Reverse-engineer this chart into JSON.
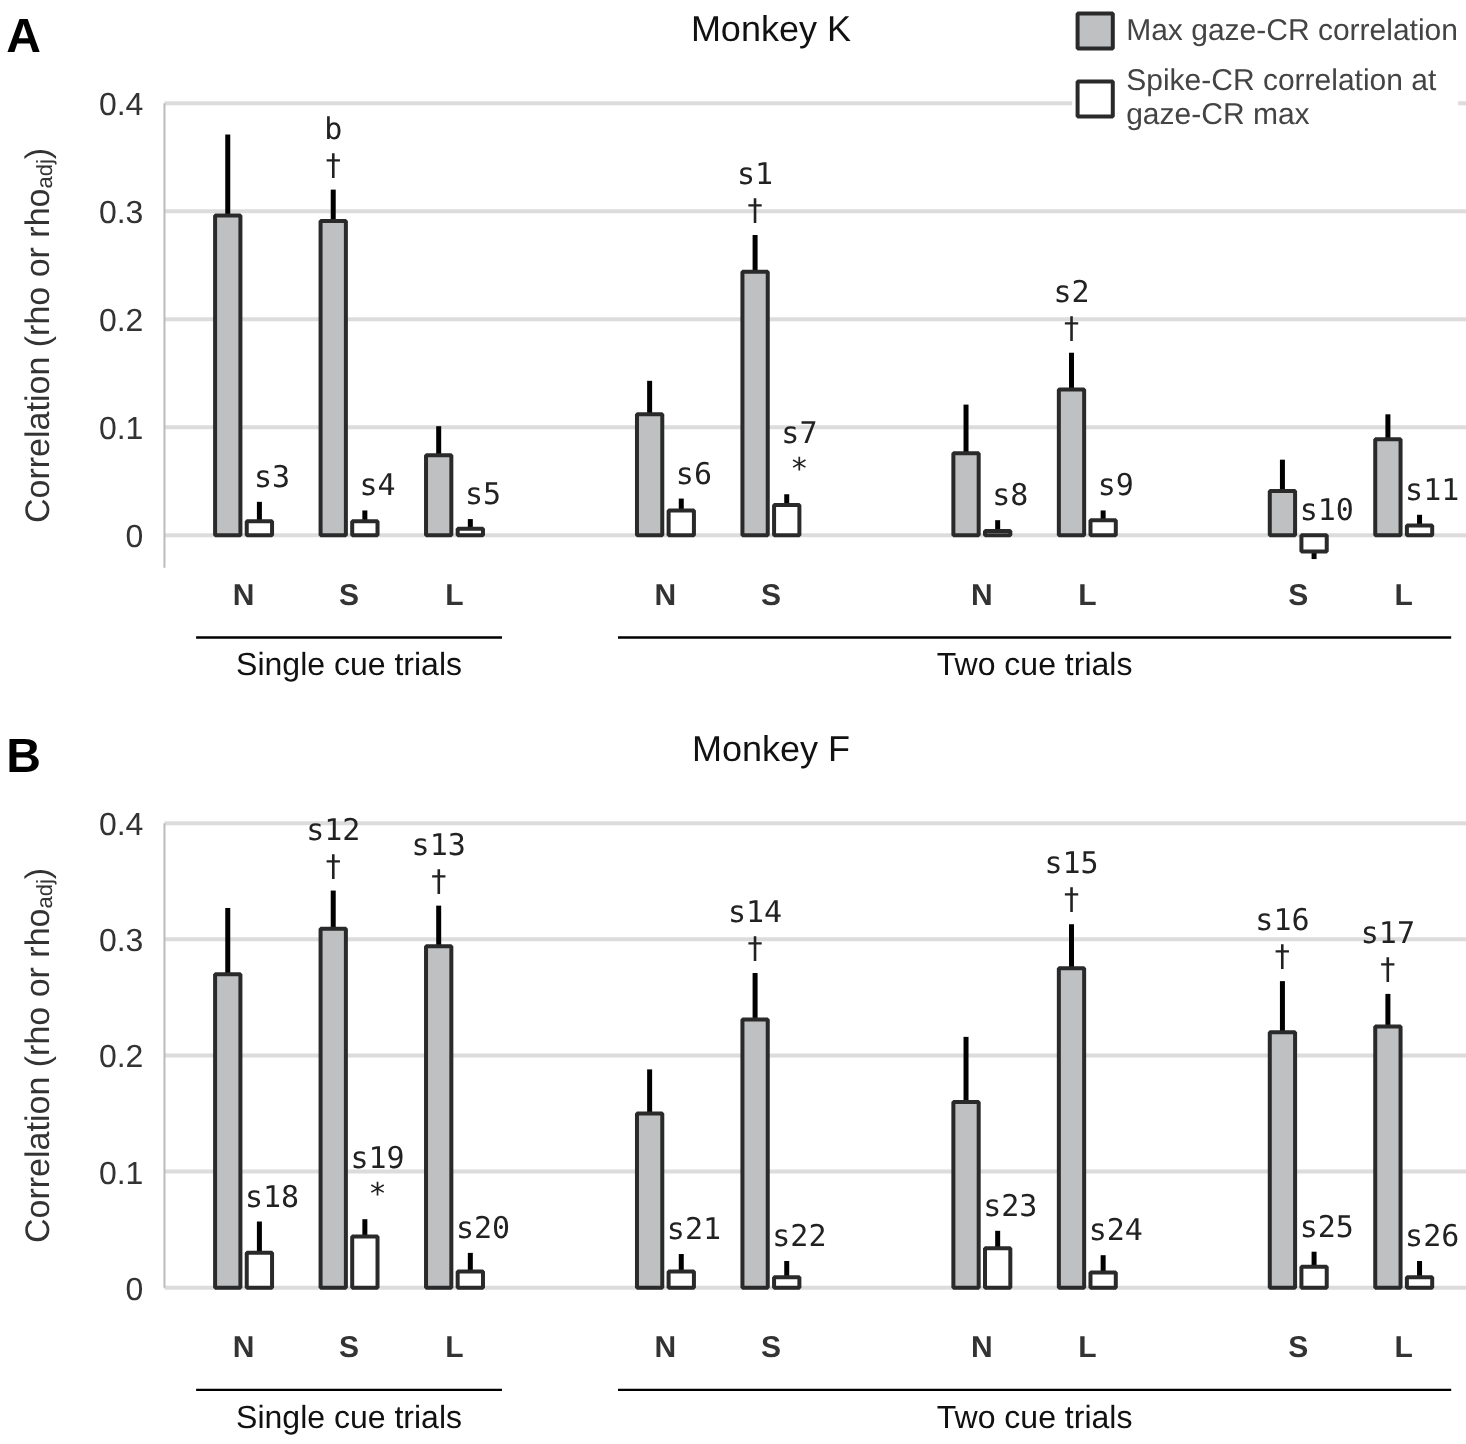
{
  "chart_data": [
    {
      "type": "bar",
      "title": "Monkey K",
      "ylabel": "Correlation (rho or rho$_{adj}$)",
      "annotations": [
        "A",
        "Single cue trials",
        "Two cue trials"
      ],
      "categories": [
        "N",
        "S",
        "L",
        null,
        "N",
        "S",
        null,
        "N",
        "L",
        null,
        "S",
        "L"
      ],
      "ylim": [
        -0.03,
        0.4
      ],
      "yticks": [
        0,
        0.1,
        0.2,
        0.3,
        0.4
      ],
      "grid": "y",
      "legend": "top right",
      "series": [
        {
          "name": "Max gaze-CR correlation",
          "color": "#bfc0c2",
          "values": [
            0.296,
            0.291,
            0.074,
            null,
            0.112,
            0.244,
            null,
            0.076,
            0.135,
            null,
            0.041,
            0.089
          ],
          "errors": [
            [
              0.296,
              0.371
            ],
            [
              0.291,
              0.32
            ],
            [
              0.074,
              0.101
            ],
            null,
            [
              0.112,
              0.143
            ],
            [
              0.244,
              0.278
            ],
            null,
            [
              0.076,
              0.121
            ],
            [
              0.135,
              0.169
            ],
            null,
            [
              0.041,
              0.07
            ],
            [
              0.089,
              0.112
            ]
          ],
          "value_labels": [
            null,
            "b\n†",
            null,
            null,
            null,
            "s1\n†",
            null,
            null,
            "s2\n†",
            null,
            null,
            null
          ]
        },
        {
          "name": "Spike-CR correlation at gaze-CR max",
          "color": "#ffffff",
          "values": [
            0.013,
            0.013,
            0.006,
            null,
            0.023,
            0.028,
            null,
            0.004,
            0.014,
            null,
            -0.015,
            0.009
          ],
          "errors": [
            [
              0.013,
              0.031
            ],
            [
              0.013,
              0.023
            ],
            [
              0.006,
              0.015
            ],
            null,
            [
              0.023,
              0.034
            ],
            [
              0.028,
              0.038
            ],
            null,
            [
              0.004,
              0.014
            ],
            [
              0.014,
              0.023
            ],
            null,
            [
              -0.022,
              -0.015
            ],
            [
              0.009,
              0.019
            ]
          ],
          "value_labels": [
            "s3",
            "s4",
            "s5",
            null,
            "s6",
            "s7\n*",
            null,
            "s8",
            "s9",
            null,
            "s10",
            "s11"
          ]
        }
      ]
    },
    {
      "type": "bar",
      "title": "Monkey F",
      "ylabel": "Correlation (rho or rho$_{adj}$)",
      "annotations": [
        "B",
        "Single cue trials",
        "Two cue trials"
      ],
      "categories": [
        "N",
        "S",
        "L",
        null,
        "N",
        "S",
        null,
        "N",
        "L",
        null,
        "S",
        "L"
      ],
      "ylim": [
        0,
        0.4
      ],
      "yticks": [
        0,
        0.1,
        0.2,
        0.3,
        0.4
      ],
      "grid": "y",
      "series": [
        {
          "color": "#bfc0c2",
          "values": [
            0.27,
            0.309,
            0.294,
            null,
            0.15,
            0.231,
            null,
            0.16,
            0.275,
            null,
            0.22,
            0.225
          ],
          "errors": [
            [
              0.27,
              0.327
            ],
            [
              0.309,
              0.342
            ],
            [
              0.294,
              0.329
            ],
            null,
            [
              0.15,
              0.188
            ],
            [
              0.231,
              0.271
            ],
            null,
            [
              0.16,
              0.216
            ],
            [
              0.275,
              0.313
            ],
            null,
            [
              0.22,
              0.264
            ],
            [
              0.225,
              0.253
            ]
          ],
          "value_labels": [
            null,
            "s12\n†",
            "s13\n†",
            null,
            null,
            "s14\n†",
            null,
            null,
            "s15\n†",
            null,
            "s16\n†",
            "s17\n†"
          ]
        },
        {
          "color": "#ffffff",
          "values": [
            0.03,
            0.044,
            0.014,
            null,
            0.014,
            0.009,
            null,
            0.034,
            0.013,
            null,
            0.018,
            0.009
          ],
          "errors": [
            [
              0.03,
              0.057
            ],
            [
              0.044,
              0.059
            ],
            [
              0.014,
              0.03
            ],
            null,
            [
              0.014,
              0.029
            ],
            [
              0.009,
              0.023
            ],
            null,
            [
              0.034,
              0.049
            ],
            [
              0.013,
              0.028
            ],
            null,
            [
              0.018,
              0.031
            ],
            [
              0.009,
              0.023
            ]
          ],
          "value_labels": [
            "s18",
            "s19\n*",
            "s20",
            null,
            "s21",
            "s22",
            null,
            "s23",
            "s24",
            null,
            "s25",
            "s26"
          ]
        }
      ]
    }
  ]
}
